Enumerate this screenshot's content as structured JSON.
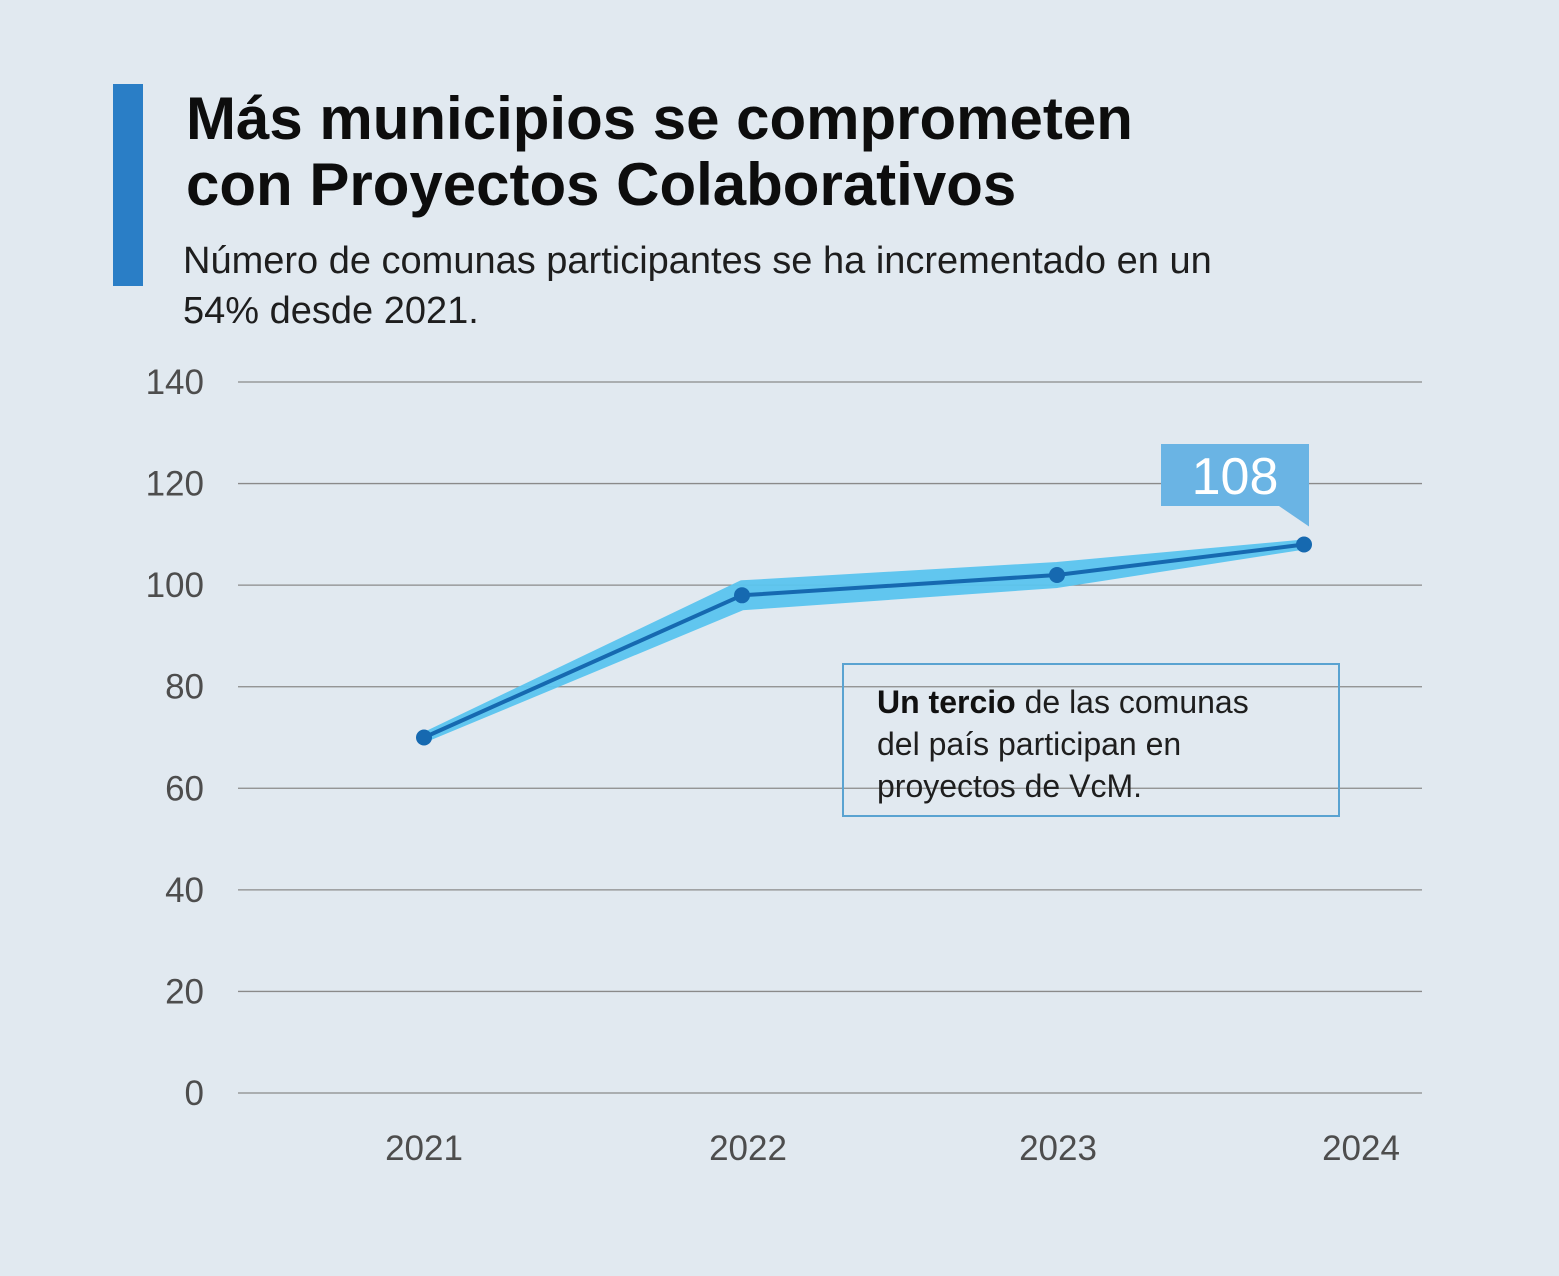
{
  "header": {
    "title_line1": "Más municipios se comprometen",
    "title_line2": "con Proyectos Colaborativos",
    "subtitle_line1": "Número de comunas participantes se ha incrementado en un",
    "subtitle_line2": "54% desde 2021."
  },
  "note": {
    "bold": "Un tercio",
    "rest_line1": " de las comunas",
    "line2": "del país participan en",
    "line3": "proyectos de VcM."
  },
  "colors": {
    "accent": "#2a7ec6",
    "line": "#1669b0",
    "band": "#5bc5ef",
    "callout": "#6ab4e4",
    "grid": "#8a8a8a"
  },
  "chart_data": {
    "type": "line",
    "title": "Más municipios se comprometen con Proyectos Colaborativos",
    "subtitle": "Número de comunas participantes se ha incrementado en un 54% desde 2021.",
    "categories": [
      "2021",
      "2022",
      "2023",
      "2024"
    ],
    "series": [
      {
        "name": "Comunas participantes",
        "values": [
          70,
          98,
          102,
          108
        ]
      }
    ],
    "ylim": [
      0,
      140
    ],
    "yticks": [
      0,
      20,
      40,
      60,
      80,
      100,
      120,
      140
    ],
    "grid": true,
    "xlabel": "",
    "ylabel": "",
    "callout": {
      "category": "2024",
      "label": "108"
    }
  }
}
